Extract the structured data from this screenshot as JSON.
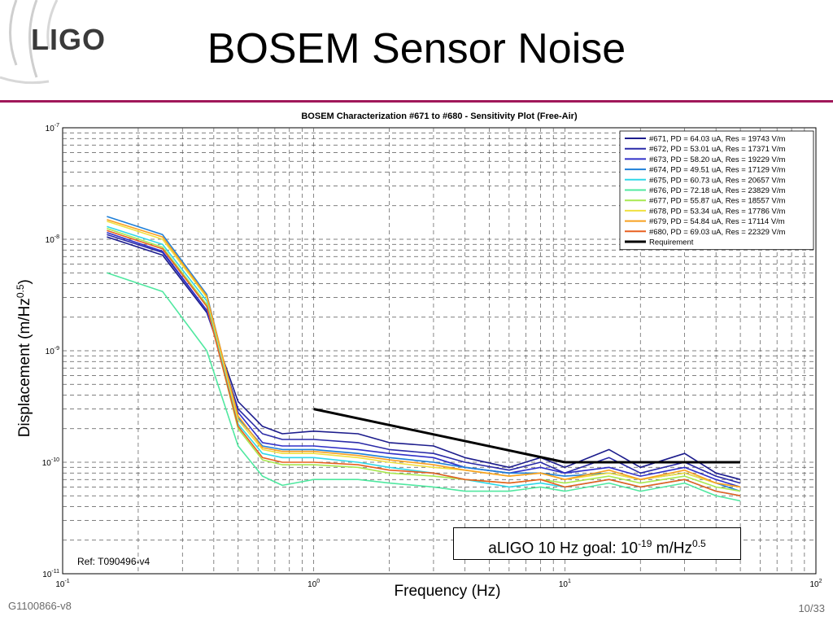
{
  "slide": {
    "title": "BOSEM Sensor Noise",
    "logo_text": "LIGO",
    "doc_id": "G1100866-v8",
    "page": "10/33",
    "ref": "Ref: T090496-v4",
    "goal_prefix": "aLIGO 10 Hz goal: 10",
    "goal_exp": "-19",
    "goal_unit": " m/Hz",
    "goal_unit_exp": "0.5",
    "xlabel_text": "Frequency (Hz)",
    "ylabel_prefix": "Displacement (m/Hz",
    "ylabel_exp": "0.5",
    "ylabel_suffix": ")"
  },
  "chart_data": {
    "type": "line",
    "title": "BOSEM Characterization #671 to #680 - Sensitivity Plot (Free-Air)",
    "xlabel": "Frequency (Hz)",
    "ylabel": "Displacement (m/Hz^0.5)",
    "xscale": "log",
    "yscale": "log",
    "xlim": [
      0.1,
      100
    ],
    "ylim": [
      1e-11,
      1e-07
    ],
    "grid": true,
    "legend_position": "top-right",
    "x_ticks": [
      {
        "value": 0.1,
        "base": "10",
        "exp": "-1"
      },
      {
        "value": 1,
        "base": "10",
        "exp": "0"
      },
      {
        "value": 10,
        "base": "10",
        "exp": "1"
      },
      {
        "value": 100,
        "base": "10",
        "exp": "2"
      }
    ],
    "y_ticks": [
      {
        "value": 1e-07,
        "base": "10",
        "exp": "-7"
      },
      {
        "value": 1e-08,
        "base": "10",
        "exp": "-8"
      },
      {
        "value": 1e-09,
        "base": "10",
        "exp": "-9"
      },
      {
        "value": 1e-10,
        "base": "10",
        "exp": "-10"
      },
      {
        "value": 1e-11,
        "base": "10",
        "exp": "-11"
      }
    ],
    "x": [
      0.15,
      0.25,
      0.375,
      0.5,
      0.625,
      0.75,
      1.0,
      1.5,
      2.0,
      3.0,
      4.0,
      6.0,
      8.0,
      10.0,
      15.0,
      20.0,
      30.0,
      40.0,
      50.0
    ],
    "series": [
      {
        "name": "#671, PD = 64.03 uA, Res = 19743 V/m",
        "color": "#1c1c8c",
        "values": [
          1.05e-08,
          7.2e-09,
          2.2e-09,
          3.5e-10,
          2.1e-10,
          1.8e-10,
          1.9e-10,
          1.8e-10,
          1.5e-10,
          1.4e-10,
          1.1e-10,
          9e-11,
          1.1e-10,
          9e-11,
          1.3e-10,
          9e-11,
          1.2e-10,
          8e-11,
          7e-11
        ]
      },
      {
        "name": "#672, PD = 53.01 uA, Res = 17371 V/m",
        "color": "#2a2aa8",
        "values": [
          1.1e-08,
          7.6e-09,
          2.3e-09,
          3e-10,
          1.8e-10,
          1.6e-10,
          1.6e-10,
          1.5e-10,
          1.3e-10,
          1.2e-10,
          1e-10,
          8.5e-11,
          1e-10,
          8e-11,
          1.1e-10,
          8e-11,
          1e-10,
          7.5e-11,
          6.5e-11
        ]
      },
      {
        "name": "#673, PD = 58.20 uA, Res = 19229 V/m",
        "color": "#3030c8",
        "values": [
          1.15e-08,
          7.8e-09,
          2.3e-09,
          2.8e-10,
          1.5e-10,
          1.4e-10,
          1.4e-10,
          1.3e-10,
          1.2e-10,
          1.1e-10,
          9e-11,
          8e-11,
          9e-11,
          8e-11,
          9e-11,
          7.5e-11,
          9e-11,
          7e-11,
          6e-11
        ]
      },
      {
        "name": "#674, PD = 49.51 uA, Res = 17129 V/m",
        "color": "#1e7fd8",
        "values": [
          1.6e-08,
          1.1e-08,
          3.2e-09,
          2.5e-10,
          1.4e-10,
          1.3e-10,
          1.3e-10,
          1.2e-10,
          1.1e-10,
          1e-10,
          9e-11,
          8e-11,
          8e-11,
          7.5e-11,
          8e-11,
          7e-11,
          8e-11,
          6.5e-11,
          5.5e-11
        ]
      },
      {
        "name": "#675, PD = 60.73 uA, Res = 20657 V/m",
        "color": "#30d8e8",
        "values": [
          1.3e-08,
          9e-09,
          2.8e-09,
          2.2e-10,
          1.2e-10,
          1.1e-10,
          1.1e-10,
          1e-10,
          9e-11,
          8e-11,
          7e-11,
          6e-11,
          6.5e-11,
          6e-11,
          7e-11,
          6e-11,
          7e-11,
          5.5e-11,
          5e-11
        ]
      },
      {
        "name": "#676, PD = 72.18 uA, Res = 23829 V/m",
        "color": "#50e8a0",
        "values": [
          5e-09,
          3.4e-09,
          1e-09,
          1.4e-10,
          7.5e-11,
          6.2e-11,
          7e-11,
          7e-11,
          6.5e-11,
          6e-11,
          5.5e-11,
          5.5e-11,
          6e-11,
          5.5e-11,
          6.5e-11,
          5.5e-11,
          6.5e-11,
          5e-11,
          4.5e-11
        ]
      },
      {
        "name": "#677, PD = 55.87 uA, Res = 18557 V/m",
        "color": "#a8e850",
        "values": [
          1.25e-08,
          8.5e-09,
          2.6e-09,
          2e-10,
          1.05e-10,
          9.5e-11,
          9.5e-11,
          9e-11,
          8e-11,
          7.5e-11,
          7e-11,
          6.5e-11,
          7e-11,
          6.5e-11,
          7.5e-11,
          6.5e-11,
          7.5e-11,
          6e-11,
          5.5e-11
        ]
      },
      {
        "name": "#678, PD = 53.34 uA, Res = 17786 V/m",
        "color": "#f0e040",
        "values": [
          1.45e-08,
          1e-08,
          3e-09,
          2.4e-10,
          1.3e-10,
          1.2e-10,
          1.2e-10,
          1.1e-10,
          1e-10,
          9e-11,
          8.5e-11,
          7.5e-11,
          8e-11,
          7e-11,
          8e-11,
          7e-11,
          8e-11,
          6.5e-11,
          6e-11
        ]
      },
      {
        "name": "#679, PD = 54.84 uA, Res = 17114 V/m",
        "color": "#f8a020",
        "values": [
          1.5e-08,
          1.05e-08,
          3.1e-09,
          2.6e-10,
          1.35e-10,
          1.25e-10,
          1.25e-10,
          1.15e-10,
          1.05e-10,
          9.5e-11,
          8.5e-11,
          7.5e-11,
          8e-11,
          7e-11,
          8.5e-11,
          7e-11,
          8.5e-11,
          6.5e-11,
          6e-11
        ]
      },
      {
        "name": "#680, PD = 69.03 uA, Res = 22329 V/m",
        "color": "#e86020",
        "values": [
          1.2e-08,
          8.2e-09,
          2.5e-09,
          2.1e-10,
          1.1e-10,
          1e-10,
          1e-10,
          9.5e-11,
          8.5e-11,
          8e-11,
          7e-11,
          6.5e-11,
          7e-11,
          6e-11,
          7e-11,
          6e-11,
          7e-11,
          5.5e-11,
          5e-11
        ]
      },
      {
        "name": "Requirement",
        "color": "#000000",
        "x": [
          1.0,
          10.0,
          50.0
        ],
        "values": [
          3e-10,
          1e-10,
          1e-10
        ]
      }
    ]
  }
}
